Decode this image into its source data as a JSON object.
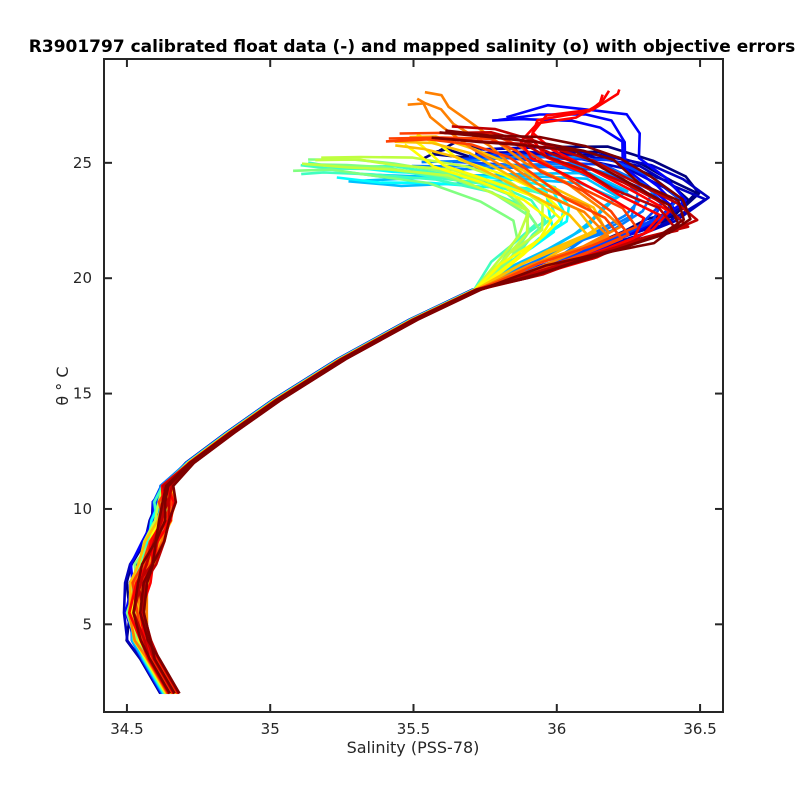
{
  "chart_data": {
    "type": "line",
    "title": "R3901797 calibrated float data (-) and mapped salinity (o) with objective errors",
    "xlabel": "Salinity (PSS-78)",
    "ylabel": "θ ° C",
    "xlim": [
      34.42,
      36.58
    ],
    "ylim": [
      1.2,
      29.5
    ],
    "xticks": [
      34.5,
      35,
      35.5,
      36,
      36.5
    ],
    "xtick_labels": [
      "34.5",
      "35",
      "35.5",
      "36",
      "36.5"
    ],
    "yticks": [
      5,
      10,
      15,
      20,
      25
    ],
    "ytick_labels": [
      "5",
      "10",
      "15",
      "20",
      "25"
    ],
    "grid": false,
    "legend": "none",
    "colormap": "jet (profile index)",
    "common_profile": {
      "s": [
        34.65,
        34.58,
        34.55,
        34.53,
        34.54,
        34.56,
        34.59,
        34.62,
        34.63,
        34.64,
        34.72,
        34.86,
        35.02,
        35.25,
        35.5,
        35.72
      ],
      "t": [
        2.0,
        3.5,
        4.3,
        5.5,
        6.8,
        7.6,
        8.6,
        9.5,
        10.3,
        11.0,
        12.0,
        13.3,
        14.7,
        16.5,
        18.2,
        19.5
      ]
    },
    "series": [
      {
        "color": "#00007F",
        "values": [
          [
            35.72,
            19.5
          ],
          [
            35.9,
            20.3
          ],
          [
            36.05,
            21
          ],
          [
            36.2,
            21.8
          ],
          [
            36.3,
            22.3
          ],
          [
            36.42,
            22.8
          ],
          [
            36.48,
            23.6
          ],
          [
            36.4,
            24.3
          ],
          [
            36.3,
            25
          ],
          [
            36.15,
            25.5
          ],
          [
            35.95,
            25.4
          ],
          [
            35.7,
            25.3
          ],
          [
            35.6,
            25.6
          ],
          [
            35.55,
            25.4
          ]
        ]
      },
      {
        "color": "#0000BF",
        "values": [
          [
            35.72,
            19.5
          ],
          [
            35.9,
            20.2
          ],
          [
            36.1,
            21
          ],
          [
            36.25,
            21.8
          ],
          [
            36.38,
            22.4
          ],
          [
            36.5,
            23.3
          ],
          [
            36.4,
            24
          ],
          [
            36.3,
            24.8
          ],
          [
            36.1,
            25.3
          ],
          [
            35.9,
            25.5
          ],
          [
            35.7,
            25.4
          ]
        ]
      },
      {
        "color": "#0000FF",
        "values": [
          [
            35.72,
            19.5
          ],
          [
            35.92,
            20.3
          ],
          [
            36.1,
            21
          ],
          [
            36.25,
            21.9
          ],
          [
            36.35,
            22.5
          ],
          [
            36.42,
            23.2
          ],
          [
            36.35,
            24.1
          ],
          [
            36.25,
            25
          ],
          [
            36.25,
            26
          ],
          [
            36.2,
            26.8
          ],
          [
            36.1,
            27.1
          ],
          [
            35.92,
            27.2
          ],
          [
            35.8,
            26.9
          ]
        ]
      },
      {
        "color": "#0040FF",
        "values": [
          [
            35.72,
            19.5
          ],
          [
            35.92,
            20.3
          ],
          [
            36.08,
            21.1
          ],
          [
            36.22,
            21.8
          ],
          [
            36.32,
            22.5
          ],
          [
            36.38,
            23.4
          ],
          [
            36.3,
            24.2
          ],
          [
            36.15,
            24.9
          ],
          [
            35.98,
            25.1
          ],
          [
            35.8,
            25.2
          ],
          [
            35.65,
            25.15
          ]
        ]
      },
      {
        "color": "#0080FF",
        "values": [
          [
            35.72,
            19.5
          ],
          [
            35.88,
            20.4
          ],
          [
            36.02,
            21.2
          ],
          [
            36.15,
            22
          ],
          [
            36.25,
            22.8
          ],
          [
            36.3,
            23.6
          ],
          [
            36.22,
            24.4
          ],
          [
            36.05,
            25
          ],
          [
            35.85,
            25
          ],
          [
            35.65,
            24.95
          ],
          [
            35.5,
            24.9
          ]
        ]
      },
      {
        "color": "#00C0FF",
        "values": [
          [
            35.72,
            19.5
          ],
          [
            35.85,
            20.5
          ],
          [
            35.97,
            21.3
          ],
          [
            36.08,
            22.1
          ],
          [
            36.15,
            22.9
          ],
          [
            36.22,
            23.6
          ],
          [
            36.1,
            24.3
          ],
          [
            35.9,
            24.4
          ],
          [
            35.7,
            24.35
          ],
          [
            35.5,
            24.3
          ],
          [
            35.3,
            24.3
          ]
        ]
      },
      {
        "color": "#00FFFF",
        "values": [
          [
            35.72,
            19.5
          ],
          [
            35.83,
            20.7
          ],
          [
            35.93,
            21.6
          ],
          [
            36,
            22.3
          ],
          [
            36.02,
            23
          ],
          [
            35.98,
            23.8
          ],
          [
            35.8,
            24.1
          ],
          [
            35.6,
            24.3
          ],
          [
            35.4,
            24.4
          ],
          [
            35.25,
            24.5
          ]
        ]
      },
      {
        "color": "#40FFBF",
        "values": [
          [
            35.72,
            19.5
          ],
          [
            35.82,
            20.8
          ],
          [
            35.9,
            21.8
          ],
          [
            35.95,
            22.6
          ],
          [
            35.92,
            23.4
          ],
          [
            35.78,
            24
          ],
          [
            35.6,
            24.4
          ],
          [
            35.4,
            24.6
          ],
          [
            35.2,
            24.7
          ],
          [
            35.12,
            24.8
          ]
        ]
      },
      {
        "color": "#80FF80",
        "values": [
          [
            35.72,
            19.5
          ],
          [
            35.83,
            20.8
          ],
          [
            35.9,
            21.9
          ],
          [
            35.88,
            22.8
          ],
          [
            35.78,
            23.6
          ],
          [
            35.6,
            24.3
          ],
          [
            35.4,
            24.7
          ],
          [
            35.25,
            24.85
          ],
          [
            35.12,
            24.9
          ]
        ]
      },
      {
        "color": "#BFFF40",
        "values": [
          [
            35.72,
            19.5
          ],
          [
            35.82,
            20.9
          ],
          [
            35.9,
            22
          ],
          [
            35.92,
            23
          ],
          [
            35.82,
            23.9
          ],
          [
            35.65,
            24.6
          ],
          [
            35.45,
            25
          ],
          [
            35.3,
            25.1
          ],
          [
            35.15,
            25.1
          ]
        ]
      },
      {
        "color": "#FFFF00",
        "values": [
          [
            35.72,
            19.5
          ],
          [
            35.85,
            20.8
          ],
          [
            35.95,
            21.8
          ],
          [
            36,
            22.6
          ],
          [
            35.92,
            23.5
          ],
          [
            35.78,
            24.3
          ],
          [
            35.62,
            25
          ],
          [
            35.55,
            25.7
          ],
          [
            35.5,
            26
          ]
        ]
      },
      {
        "color": "#FFBF00",
        "values": [
          [
            35.72,
            19.5
          ],
          [
            35.88,
            20.5
          ],
          [
            36.02,
            21.3
          ],
          [
            36.12,
            22.1
          ],
          [
            36.08,
            23
          ],
          [
            35.95,
            23.8
          ],
          [
            35.82,
            24.6
          ],
          [
            35.7,
            25.4
          ],
          [
            35.55,
            25.9
          ],
          [
            35.45,
            26
          ]
        ]
      },
      {
        "color": "#FF8000",
        "values": [
          [
            35.72,
            19.5
          ],
          [
            35.9,
            20.4
          ],
          [
            36.08,
            21.2
          ],
          [
            36.2,
            22
          ],
          [
            36.12,
            23
          ],
          [
            35.98,
            23.9
          ],
          [
            35.85,
            24.8
          ],
          [
            35.75,
            25.8
          ],
          [
            35.65,
            26.6
          ],
          [
            35.6,
            27.2
          ],
          [
            35.55,
            27.7
          ],
          [
            35.5,
            27.8
          ]
        ]
      },
      {
        "color": "#FF4000",
        "values": [
          [
            35.72,
            19.5
          ],
          [
            35.92,
            20.4
          ],
          [
            36.1,
            21.2
          ],
          [
            36.25,
            22
          ],
          [
            36.2,
            22.9
          ],
          [
            36.08,
            23.7
          ],
          [
            35.95,
            24.6
          ],
          [
            35.85,
            25.5
          ],
          [
            35.75,
            26
          ],
          [
            35.6,
            26.1
          ],
          [
            35.42,
            26.1
          ]
        ]
      },
      {
        "color": "#FF0000",
        "values": [
          [
            35.72,
            19.5
          ],
          [
            35.95,
            20.3
          ],
          [
            36.15,
            21.1
          ],
          [
            36.3,
            21.9
          ],
          [
            36.35,
            22.8
          ],
          [
            36.22,
            23.6
          ],
          [
            36.08,
            24.5
          ],
          [
            35.95,
            25.3
          ],
          [
            35.9,
            26
          ],
          [
            35.95,
            26.8
          ],
          [
            36.1,
            27.2
          ],
          [
            36.18,
            27.8
          ],
          [
            36.18,
            28.1
          ]
        ]
      },
      {
        "color": "#BF0000",
        "values": [
          [
            35.72,
            19.5
          ],
          [
            35.95,
            20.3
          ],
          [
            36.15,
            21.1
          ],
          [
            36.32,
            21.8
          ],
          [
            36.45,
            22.3
          ],
          [
            36.38,
            23.2
          ],
          [
            36.22,
            24.1
          ],
          [
            36.1,
            24.8
          ],
          [
            36,
            25.4
          ],
          [
            35.9,
            25.9
          ],
          [
            35.75,
            26.2
          ],
          [
            35.62,
            26.3
          ]
        ]
      },
      {
        "color": "#7F0000",
        "values": [
          [
            35.72,
            19.5
          ],
          [
            35.95,
            20.3
          ],
          [
            36.18,
            21.1
          ],
          [
            36.35,
            21.8
          ],
          [
            36.45,
            22.5
          ],
          [
            36.42,
            23.3
          ],
          [
            36.3,
            24.2
          ],
          [
            36.18,
            25
          ],
          [
            36.08,
            25.6
          ],
          [
            35.92,
            25.9
          ],
          [
            35.75,
            26.1
          ],
          [
            35.6,
            26.2
          ]
        ]
      }
    ]
  }
}
